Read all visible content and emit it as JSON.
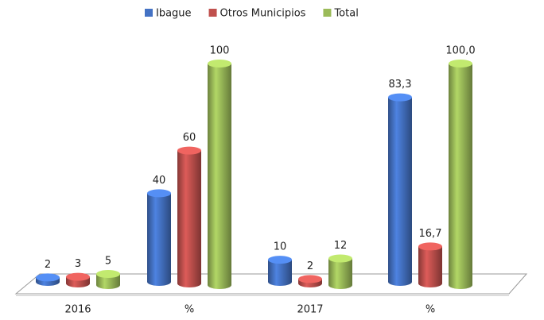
{
  "chart_data": {
    "type": "bar3d",
    "categories": [
      "2016",
      "%",
      "2017",
      "%"
    ],
    "series": [
      {
        "name": "Ibague",
        "color": "#4472c4",
        "values": [
          2,
          40,
          10,
          83.3
        ],
        "value_labels": [
          "2",
          "40",
          "10",
          "83,3"
        ]
      },
      {
        "name": "Otros Municipios",
        "color": "#c0504d",
        "values": [
          3,
          60,
          2,
          16.7
        ],
        "value_labels": [
          "3",
          "60",
          "2",
          "16,7"
        ]
      },
      {
        "name": "Total",
        "color": "#9bbb59",
        "values": [
          5,
          100,
          12,
          100
        ],
        "value_labels": [
          "5",
          "100",
          "12",
          "100,0"
        ]
      }
    ],
    "legend": "top"
  }
}
